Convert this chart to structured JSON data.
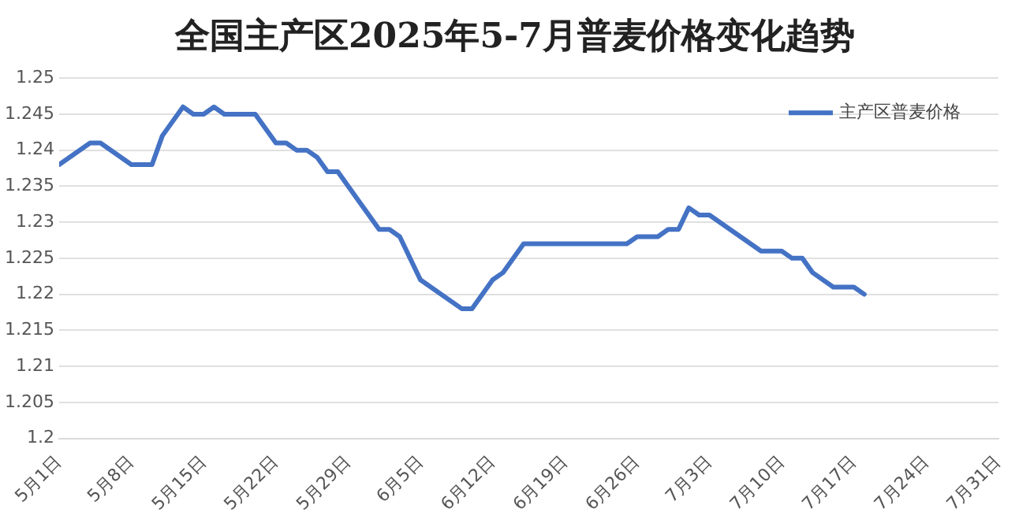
{
  "chart_data": {
    "type": "line",
    "title": "全国主产区2025年5-7月普麦价格变化趋势",
    "x": [
      "2025-05-01",
      "2025-05-04",
      "2025-05-05",
      "2025-05-08",
      "2025-05-10",
      "2025-05-11",
      "2025-05-13",
      "2025-05-14",
      "2025-05-15",
      "2025-05-16",
      "2025-05-17",
      "2025-05-20",
      "2025-05-22",
      "2025-05-23",
      "2025-05-24",
      "2025-05-25",
      "2025-05-26",
      "2025-05-27",
      "2025-05-28",
      "2025-06-01",
      "2025-06-02",
      "2025-06-03",
      "2025-06-05",
      "2025-06-09",
      "2025-06-10",
      "2025-06-12",
      "2025-06-13",
      "2025-06-15",
      "2025-06-25",
      "2025-06-26",
      "2025-06-28",
      "2025-06-29",
      "2025-06-30",
      "2025-07-01",
      "2025-07-02",
      "2025-07-03",
      "2025-07-08",
      "2025-07-10",
      "2025-07-11",
      "2025-07-12",
      "2025-07-13",
      "2025-07-15",
      "2025-07-17",
      "2025-07-18"
    ],
    "series": [
      {
        "name": "主产区普麦价格",
        "color": "#4472c4",
        "values": [
          1.238,
          1.241,
          1.241,
          1.238,
          1.238,
          1.242,
          1.246,
          1.245,
          1.245,
          1.246,
          1.245,
          1.245,
          1.241,
          1.241,
          1.24,
          1.24,
          1.239,
          1.237,
          1.237,
          1.229,
          1.229,
          1.228,
          1.222,
          1.218,
          1.218,
          1.222,
          1.223,
          1.227,
          1.227,
          1.228,
          1.228,
          1.229,
          1.229,
          1.232,
          1.231,
          1.231,
          1.226,
          1.226,
          1.225,
          1.225,
          1.223,
          1.221,
          1.221,
          1.22
        ]
      }
    ],
    "xlim": [
      "2025-05-01",
      "2025-07-31"
    ],
    "xticks": [
      {
        "value": "2025-05-01",
        "label": "5月1日"
      },
      {
        "value": "2025-05-08",
        "label": "5月8日"
      },
      {
        "value": "2025-05-15",
        "label": "5月15日"
      },
      {
        "value": "2025-05-22",
        "label": "5月22日"
      },
      {
        "value": "2025-05-29",
        "label": "5月29日"
      },
      {
        "value": "2025-06-05",
        "label": "6月5日"
      },
      {
        "value": "2025-06-12",
        "label": "6月12日"
      },
      {
        "value": "2025-06-19",
        "label": "6月19日"
      },
      {
        "value": "2025-06-26",
        "label": "6月26日"
      },
      {
        "value": "2025-07-03",
        "label": "7月3日"
      },
      {
        "value": "2025-07-10",
        "label": "7月10日"
      },
      {
        "value": "2025-07-17",
        "label": "7月17日"
      },
      {
        "value": "2025-07-24",
        "label": "7月24日"
      },
      {
        "value": "2025-07-31",
        "label": "7月31日"
      }
    ],
    "ylim": [
      1.2,
      1.25
    ],
    "yticks": [
      1.2,
      1.205,
      1.21,
      1.215,
      1.22,
      1.225,
      1.23,
      1.235,
      1.24,
      1.245,
      1.25
    ],
    "grid": "y",
    "legend": "top right",
    "marker": "none",
    "line_style": "solid"
  }
}
